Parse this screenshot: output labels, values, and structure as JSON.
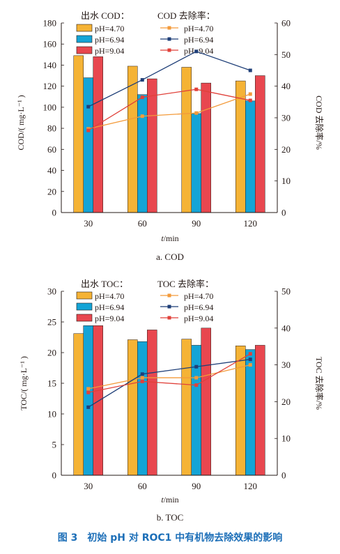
{
  "colors": {
    "ph470": "#f5b335",
    "ph694": "#14a4d6",
    "ph904": "#e8474f",
    "line470": "#f39a3a",
    "line694": "#1f3f78",
    "line904": "#e0413a",
    "axis": "#231815",
    "caption": "#1d6fb8"
  },
  "figure_caption": "图 3　初始 pH 对 ROC1 中有机物去除效果的影响",
  "chart_data": [
    {
      "type": "bar",
      "subcaption": "a. COD",
      "categories": [
        "30",
        "60",
        "90",
        "120"
      ],
      "xlabel_italic": "t",
      "xlabel_rest": "/min",
      "ylabel": "COD/( mg·L⁻¹ )",
      "ylim": [
        0,
        180
      ],
      "yticks": [
        0,
        20,
        40,
        60,
        80,
        100,
        120,
        140,
        160,
        180
      ],
      "y2label": "COD 去除率/%",
      "y2lim": [
        0,
        60
      ],
      "y2ticks": [
        0,
        10,
        20,
        30,
        40,
        50,
        60
      ],
      "legend_bar_title": "出水 COD：",
      "legend_line_title": "COD 去除率：",
      "series": [
        {
          "name": "pH=4.70",
          "values": [
            149,
            139,
            138,
            125
          ]
        },
        {
          "name": "pH=6.94",
          "values": [
            128,
            112,
            94,
            106
          ]
        },
        {
          "name": "pH=9.04",
          "values": [
            148,
            127,
            123,
            130
          ]
        }
      ],
      "line_series": [
        {
          "name": "pH=4.70",
          "values": [
            26.5,
            30.5,
            31.5,
            37.5
          ]
        },
        {
          "name": "pH=6.94",
          "values": [
            33.5,
            42,
            51,
            45
          ]
        },
        {
          "name": "pH=9.04",
          "values": [
            26,
            36.5,
            39,
            35.5
          ]
        }
      ],
      "grid": false,
      "legend_position": "top-left"
    },
    {
      "type": "bar",
      "subcaption": "b. TOC",
      "categories": [
        "30",
        "60",
        "90",
        "120"
      ],
      "xlabel_italic": "t",
      "xlabel_rest": "/min",
      "ylabel": "TOC/( mg·L⁻¹ )",
      "ylim": [
        0,
        30
      ],
      "yticks": [
        0,
        5,
        10,
        15,
        20,
        25,
        30
      ],
      "y2label": "TOC 去除率/%",
      "y2lim": [
        0,
        50
      ],
      "y2ticks": [
        0,
        10,
        20,
        30,
        40,
        50
      ],
      "legend_bar_title": "出水 TOC：",
      "legend_line_title": "TOC 去除率：",
      "series": [
        {
          "name": "pH=4.70",
          "values": [
            23.1,
            22.1,
            22.2,
            21.1
          ]
        },
        {
          "name": "pH=6.94",
          "values": [
            24.4,
            21.8,
            21.2,
            20.5
          ]
        },
        {
          "name": "pH=9.04",
          "values": [
            24.4,
            23.7,
            24.0,
            21.2
          ]
        }
      ],
      "line_series": [
        {
          "name": "pH=4.70",
          "values": [
            23.5,
            26.5,
            26.5,
            30
          ]
        },
        {
          "name": "pH=6.94",
          "values": [
            18.5,
            27.5,
            29.5,
            31.5
          ]
        },
        {
          "name": "pH=9.04",
          "values": [
            22.5,
            25.5,
            24.5,
            33
          ]
        }
      ],
      "grid": false,
      "legend_position": "top-left"
    }
  ]
}
